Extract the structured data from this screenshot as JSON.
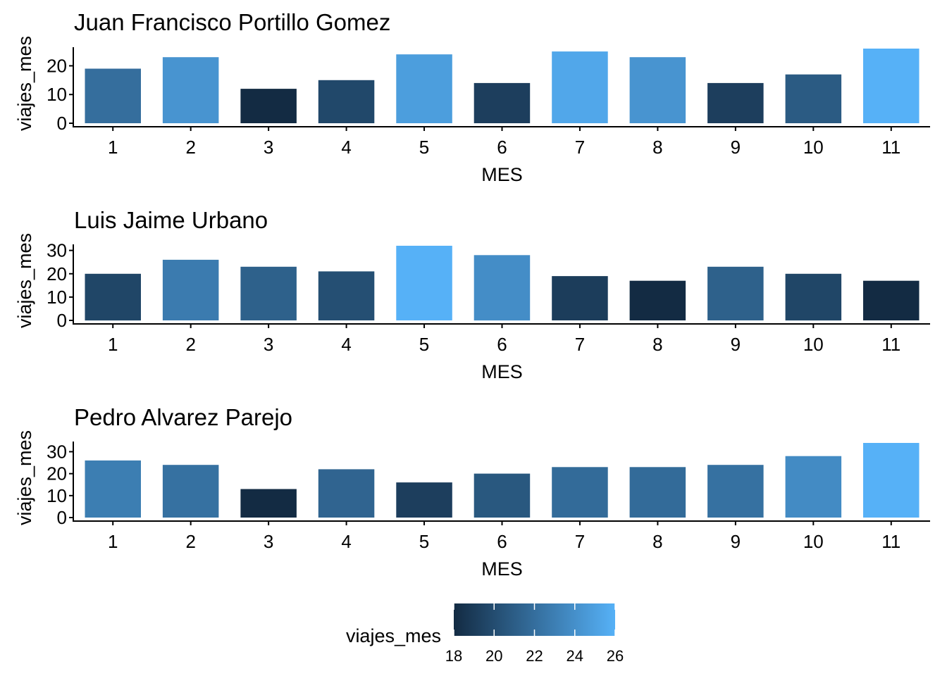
{
  "chart_data": [
    {
      "type": "bar",
      "title": "Juan Francisco Portillo Gomez",
      "xlabel": "MES",
      "ylabel": "viajes_mes",
      "categories": [
        "1",
        "2",
        "3",
        "4",
        "5",
        "6",
        "7",
        "8",
        "9",
        "10",
        "11"
      ],
      "values": [
        19,
        23,
        12,
        15,
        24,
        14,
        25,
        23,
        14,
        17,
        26
      ],
      "yticks": [
        0,
        10,
        20
      ],
      "ylim": [
        0,
        26
      ]
    },
    {
      "type": "bar",
      "title": "Luis Jaime Urbano",
      "xlabel": "MES",
      "ylabel": "viajes_mes",
      "categories": [
        "1",
        "2",
        "3",
        "4",
        "5",
        "6",
        "7",
        "8",
        "9",
        "10",
        "11"
      ],
      "values": [
        20,
        26,
        23,
        21,
        32,
        28,
        19,
        17,
        23,
        20,
        17
      ],
      "yticks": [
        0,
        10,
        20,
        30
      ],
      "ylim": [
        0,
        32
      ]
    },
    {
      "type": "bar",
      "title": "Pedro Alvarez Parejo",
      "xlabel": "MES",
      "ylabel": "viajes_mes",
      "categories": [
        "1",
        "2",
        "3",
        "4",
        "5",
        "6",
        "7",
        "8",
        "9",
        "10",
        "11"
      ],
      "values": [
        26,
        24,
        13,
        22,
        16,
        20,
        23,
        23,
        24,
        28,
        34
      ],
      "yticks": [
        0,
        10,
        20,
        30
      ],
      "ylim": [
        0,
        34
      ]
    }
  ],
  "legend": {
    "title": "viajes_mes",
    "ticks": [
      "18",
      "20",
      "22",
      "24",
      "26"
    ],
    "low_color": "#132B43",
    "high_color": "#56B1F7"
  }
}
